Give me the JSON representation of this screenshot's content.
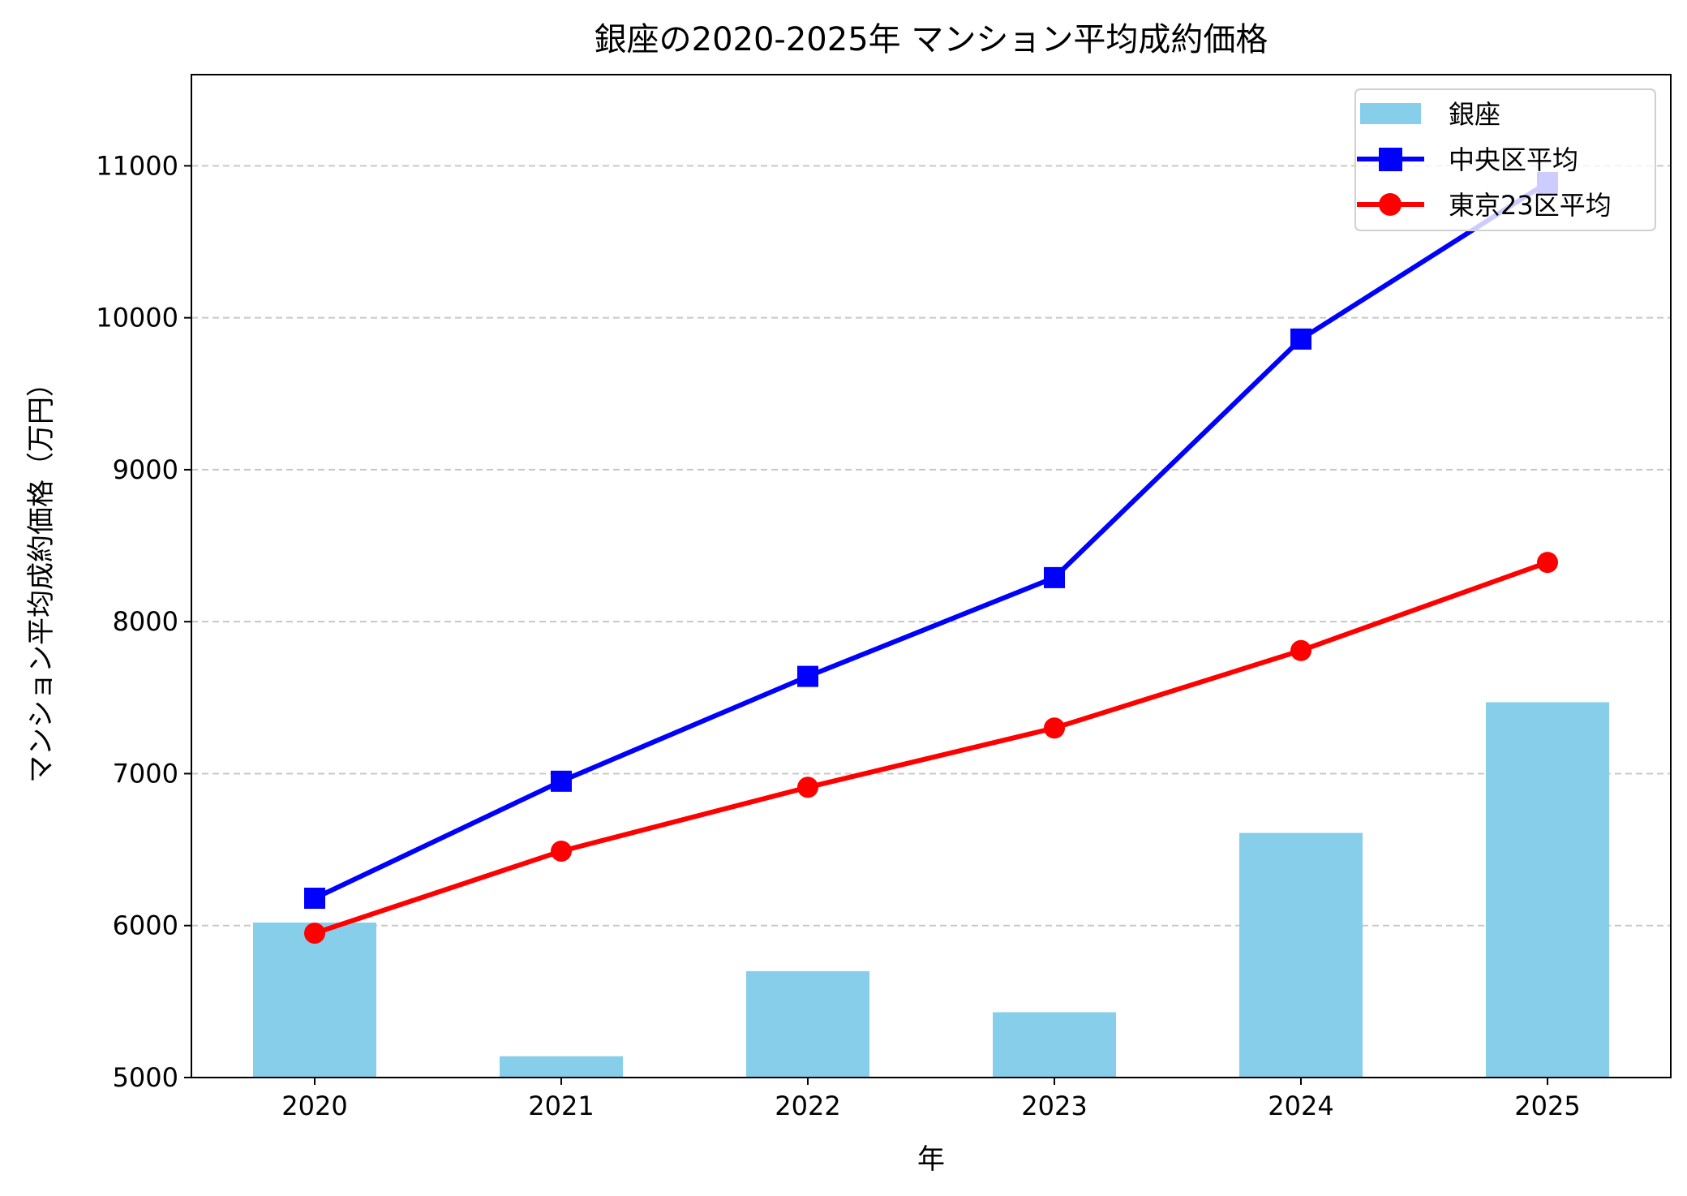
{
  "chart_data": {
    "type": "bar",
    "title": "銀座の2020-2025年 マンション平均成約価格",
    "xlabel": "年",
    "ylabel": "マンション平均成約価格（万円）",
    "categories": [
      "2020",
      "2021",
      "2022",
      "2023",
      "2024",
      "2025"
    ],
    "xlim": [
      2019.5,
      2025.5
    ],
    "ylim": [
      5000,
      11600
    ],
    "yticks": [
      5000,
      6000,
      7000,
      8000,
      9000,
      10000,
      11000
    ],
    "grid": "y dashed",
    "legend_placement": "upper right",
    "series": [
      {
        "name": "銀座",
        "kind": "bar",
        "color": "#87CEEB",
        "values": [
          6020,
          5140,
          5700,
          5430,
          6610,
          7470
        ]
      },
      {
        "name": "中央区平均",
        "kind": "line",
        "marker": "square",
        "color": "#0000FF",
        "values": [
          6180,
          6950,
          7640,
          8290,
          9860,
          10890
        ]
      },
      {
        "name": "東京23区平均",
        "kind": "line",
        "marker": "circle",
        "color": "#FF0000",
        "values": [
          5950,
          6490,
          6910,
          7300,
          7810,
          8390
        ]
      }
    ]
  }
}
